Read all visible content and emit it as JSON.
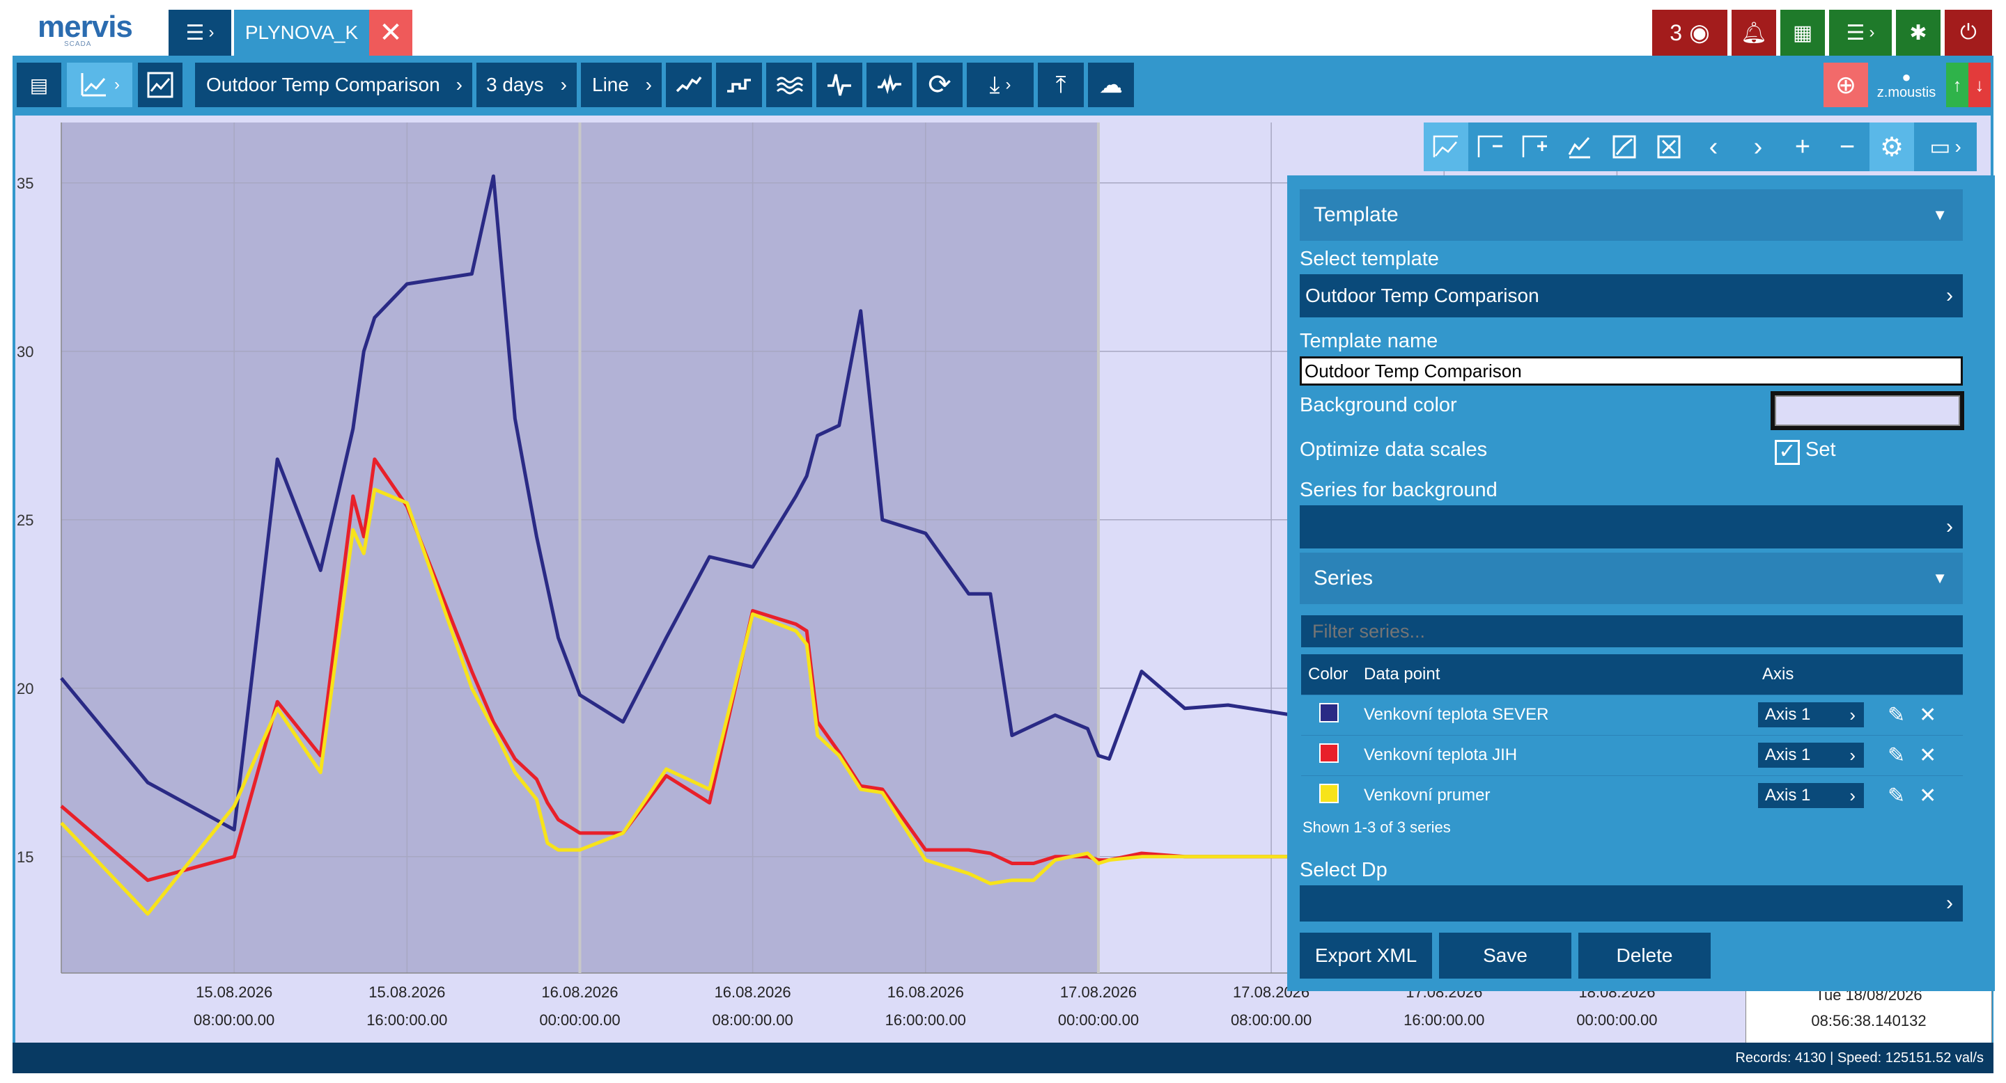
{
  "app": {
    "logo": "mervis",
    "logo_sub": "SCADA",
    "project_tab": "PLYNOVA_K",
    "alarm_count": "3"
  },
  "toolbar": {
    "template": "Outdoor Temp Comparison",
    "range": "3 days",
    "chart_type": "Line"
  },
  "user": {
    "name": "z.moustis"
  },
  "panel": {
    "template_section": "Template",
    "select_template_label": "Select template",
    "select_template_value": "Outdoor Temp Comparison",
    "template_name_label": "Template name",
    "template_name_value": "Outdoor Temp Comparison",
    "background_color_label": "Background color",
    "optimize_label": "Optimize data scales",
    "optimize_set": "Set",
    "series_bg_label": "Series for background",
    "series_section": "Series",
    "filter_placeholder": "Filter series...",
    "table_headers": {
      "color": "Color",
      "data_point": "Data point",
      "axis": "Axis"
    },
    "series_rows": [
      {
        "color": "#2a2a85",
        "name": "Venkovní teplota SEVER",
        "axis": "Axis 1"
      },
      {
        "color": "#e8202a",
        "name": "Venkovní teplota JIH",
        "axis": "Axis 1"
      },
      {
        "color": "#f7e31a",
        "name": "Venkovní prumer",
        "axis": "Axis 1"
      }
    ],
    "shown_text": "Shown 1-3 of 3 series",
    "select_dp_label": "Select Dp",
    "buttons": {
      "export": "Export XML",
      "save": "Save",
      "delete": "Delete"
    }
  },
  "status": {
    "text": "Records: 4130 | Speed: 125151.52 val/s"
  },
  "cursor_label": {
    "date": "Tue 18/08/2026",
    "time": "08:56:38.140132"
  },
  "chart_data": {
    "type": "line",
    "ylim": [
      12,
      37
    ],
    "yticks": [
      15,
      20,
      25,
      30,
      35
    ],
    "xticks": [
      {
        "date": "15.08.2026",
        "time": "08:00:00.00"
      },
      {
        "date": "15.08.2026",
        "time": "16:00:00.00"
      },
      {
        "date": "16.08.2026",
        "time": "00:00:00.00"
      },
      {
        "date": "16.08.2026",
        "time": "08:00:00.00"
      },
      {
        "date": "16.08.2026",
        "time": "16:00:00.00"
      },
      {
        "date": "17.08.2026",
        "time": "00:00:00.00"
      },
      {
        "date": "17.08.2026",
        "time": "08:00:00.00"
      },
      {
        "date": "17.08.2026",
        "time": "16:00:00.00"
      },
      {
        "date": "18.08.2026",
        "time": "00:00:00.00"
      }
    ],
    "x_hours": [
      0,
      4,
      8,
      10,
      12,
      13.5,
      14,
      14.5,
      16,
      19,
      20,
      21,
      22,
      22.5,
      23,
      24,
      26,
      28,
      30,
      32,
      34,
      34.5,
      35,
      36,
      37,
      38,
      40,
      42,
      43,
      44,
      45,
      46,
      47.5,
      48,
      48.5,
      50,
      52,
      54,
      56,
      57,
      58
    ],
    "series": [
      {
        "name": "Venkovní teplota SEVER",
        "color": "#2a2a85",
        "values": [
          20.3,
          17.2,
          15.8,
          26.8,
          23.5,
          27.7,
          30.0,
          31.0,
          32.0,
          32.3,
          35.2,
          28.0,
          24.5,
          23.0,
          21.5,
          19.8,
          19.0,
          21.5,
          23.9,
          23.6,
          25.7,
          26.3,
          27.5,
          27.8,
          31.2,
          25.0,
          24.6,
          22.8,
          22.8,
          18.6,
          18.9,
          19.2,
          18.8,
          18.0,
          17.9,
          20.5,
          19.4,
          19.5,
          19.3,
          19.2,
          19.0
        ]
      },
      {
        "name": "Venkovní teplota JIH",
        "color": "#e8202a",
        "values": [
          16.5,
          14.3,
          15.0,
          19.6,
          18.0,
          25.7,
          24.5,
          26.8,
          25.4,
          20.5,
          19.0,
          17.9,
          17.3,
          16.6,
          16.1,
          15.7,
          15.7,
          17.4,
          16.6,
          22.3,
          21.9,
          21.7,
          19.0,
          18.1,
          17.1,
          17.0,
          15.2,
          15.2,
          15.1,
          14.8,
          14.8,
          15.0,
          15.0,
          14.9,
          14.9,
          15.1,
          15.0,
          15.0,
          15.0,
          15.0,
          15.0
        ]
      },
      {
        "name": "Venkovní prumer",
        "color": "#f7e31a",
        "values": [
          16.0,
          13.3,
          16.5,
          19.4,
          17.5,
          24.7,
          24.0,
          25.9,
          25.5,
          20.0,
          18.8,
          17.5,
          16.7,
          15.4,
          15.2,
          15.2,
          15.7,
          17.6,
          17.0,
          22.2,
          21.7,
          21.3,
          18.6,
          18.0,
          17.0,
          16.9,
          14.9,
          14.5,
          14.2,
          14.3,
          14.3,
          14.9,
          15.1,
          14.8,
          14.9,
          15.0,
          15.0,
          15.0,
          15.0,
          15.0,
          15.0
        ]
      }
    ]
  }
}
